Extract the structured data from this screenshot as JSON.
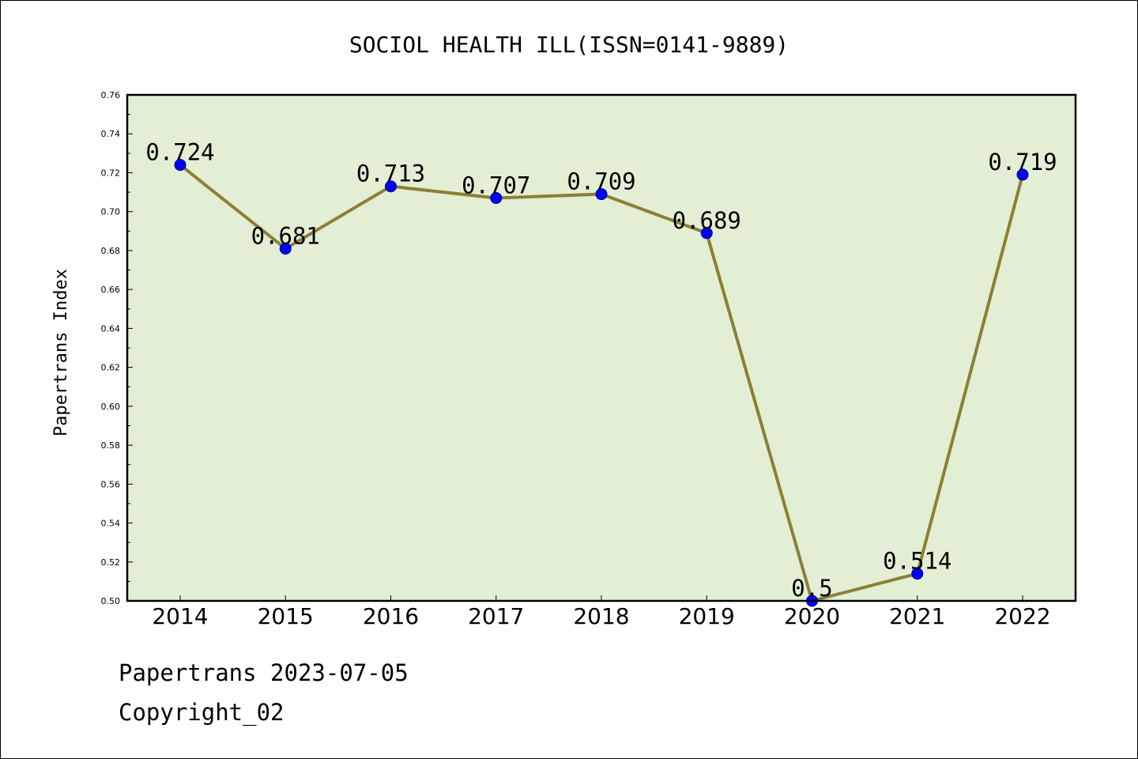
{
  "chart_data": {
    "type": "line",
    "title": "SOCIOL HEALTH ILL(ISSN=0141-9889)",
    "xlabel": "",
    "ylabel": "Papertrans Index",
    "categories": [
      "2014",
      "2015",
      "2016",
      "2017",
      "2018",
      "2019",
      "2020",
      "2021",
      "2022"
    ],
    "series": [
      {
        "values": [
          0.724,
          0.681,
          0.713,
          0.707,
          0.709,
          0.689,
          0.5,
          0.514,
          0.719
        ],
        "data_labels": [
          "0.724",
          "0.681",
          "0.713",
          "0.707",
          "0.709",
          "0.689",
          "0.5",
          "0.514",
          "0.719"
        ]
      }
    ],
    "ylim": [
      0.5,
      0.76
    ],
    "yticks": [
      "0.50",
      "0.52",
      "0.54",
      "0.56",
      "0.58",
      "0.60",
      "0.62",
      "0.64",
      "0.66",
      "0.68",
      "0.70",
      "0.72",
      "0.74",
      "0.76"
    ],
    "grid": false,
    "legend": "none",
    "colors": {
      "plot_background": "#e2efd5",
      "line": "#8b8035",
      "marker_fill": "#0000ff",
      "marker_edge": "#000080"
    }
  },
  "footer": {
    "source": "Papertrans 2023-07-05",
    "copyright": "Copyright_02"
  }
}
